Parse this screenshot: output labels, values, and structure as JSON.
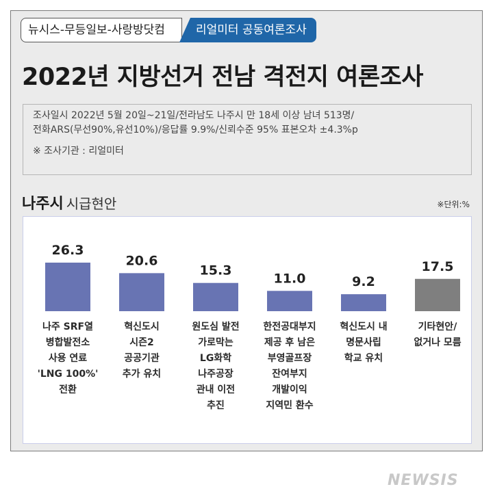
{
  "header": {
    "source": "뉴시스-무등일보-사랑방닷컴",
    "partner": "리얼미터 공동여론조사",
    "title": "2022년 지방선거 전남 격전지 여론조사"
  },
  "survey": {
    "line1": "조사일시 2022년 5월 20일~21일/전라남도 나주시 만 18세 이상 남녀 513명/",
    "line2": "전화ARS(무선90%,유선10%)/응답률 9.9%/신뢰수준 95% 표본오차 ±4.3%p",
    "agency": "※ 조사기관 : 리얼미터"
  },
  "section": {
    "city": "나주시",
    "topic": "시급현안",
    "unit": "※단위:%"
  },
  "colors": {
    "bar": "#6874b3",
    "bar_other": "#7f7f7f",
    "partner_bg": "#1f66a8"
  },
  "chart_data": {
    "type": "bar",
    "categories": [
      [
        "나주 SRF열",
        "병합발전소",
        "사용 연료",
        "'LNG 100%'",
        "전환"
      ],
      [
        "혁신도시",
        "시즌2",
        "공공기관",
        "추가 유치"
      ],
      [
        "원도심 발전",
        "가로막는",
        "LG화학",
        "나주공장",
        "관내 이전",
        "추진"
      ],
      [
        "한전공대부지",
        "제공 후 남은",
        "부영골프장",
        "잔여부지",
        "개발이익",
        "지역민 환수"
      ],
      [
        "혁신도시 내",
        "명문사립",
        "학교 유치"
      ],
      [
        "기타현안/",
        "없거나 모름"
      ]
    ],
    "values": [
      26.3,
      20.6,
      15.3,
      11.0,
      9.2,
      17.5
    ],
    "value_labels": [
      "26.3",
      "20.6",
      "15.3",
      "11.0",
      "9.2",
      "17.5"
    ],
    "ylim": [
      0,
      30
    ],
    "grid": false
  },
  "watermark": "NEWSIS"
}
